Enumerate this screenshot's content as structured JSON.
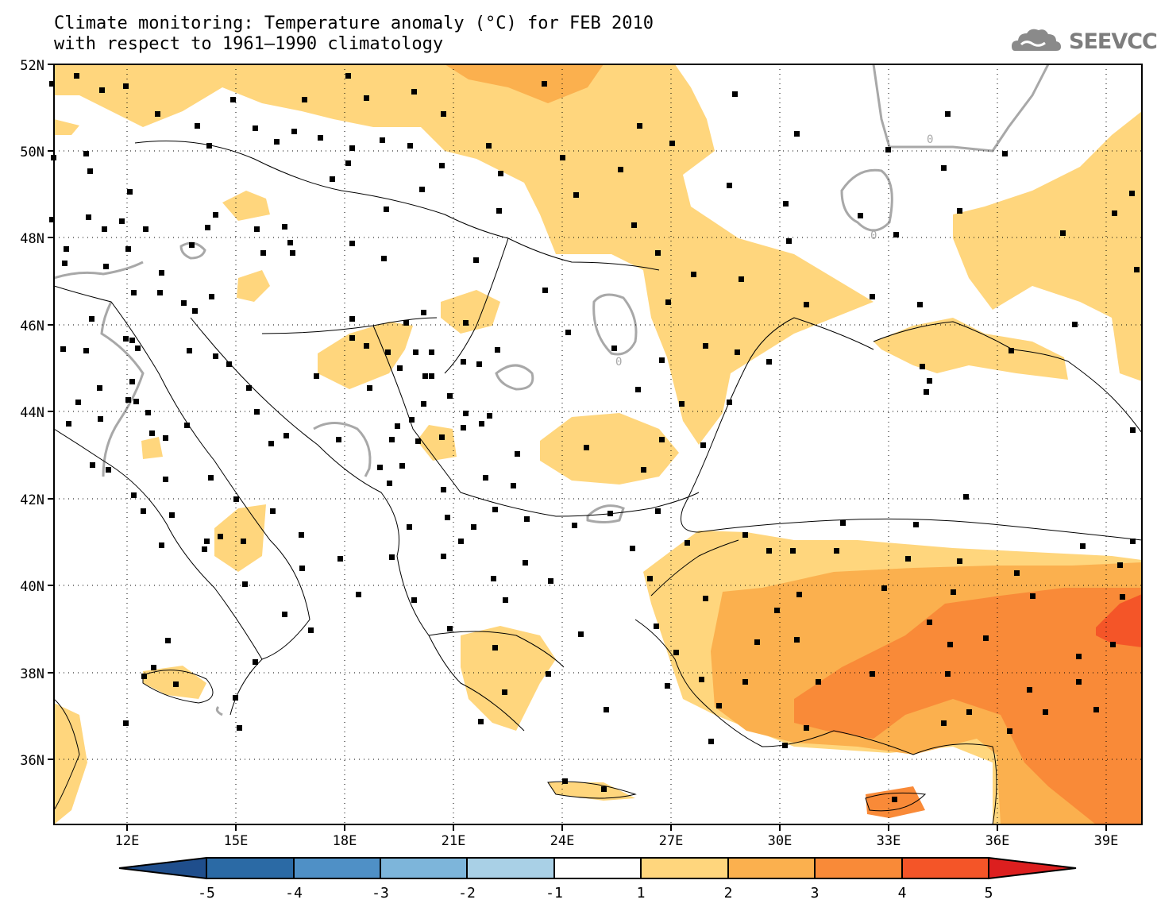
{
  "header": {
    "title_line1": "Climate monitoring: Temperature anomaly (°C) for FEB 2010",
    "title_line2": "with respect to 1961–1990 climatology",
    "logo_text": "SEEVCCC"
  },
  "map": {
    "lat_labels": [
      "52N",
      "50N",
      "48N",
      "46N",
      "44N",
      "42N",
      "40N",
      "38N",
      "36N"
    ],
    "lon_labels": [
      "12E",
      "15E",
      "18E",
      "21E",
      "24E",
      "27E",
      "30E",
      "33E",
      "36E",
      "39E"
    ],
    "contour_label": "0"
  },
  "colorbar": {
    "tick_labels": [
      "-5",
      "-4",
      "-3",
      "-2",
      "-1",
      "1",
      "2",
      "3",
      "4",
      "5"
    ],
    "colors": [
      "#1f4e8c",
      "#2b6aa5",
      "#4f90c6",
      "#7db5da",
      "#a9d0e6",
      "#ffffff",
      "#ffd67d",
      "#fbb04e",
      "#f98a38",
      "#f45528",
      "#dc1f1f"
    ]
  },
  "chart_data": {
    "type": "heatmap",
    "title": "Climate monitoring: Temperature anomaly (°C) for FEB 2010",
    "subtitle": "with respect to 1961–1990 climatology",
    "xlim": [
      10,
      40
    ],
    "ylim": [
      34.5,
      52
    ],
    "contour_levels": [
      -5,
      -4,
      -3,
      -2,
      -1,
      1,
      2,
      3,
      4,
      5
    ],
    "regions": [
      {
        "name": "",
        "min": 1,
        "max": 2
      },
      {
        "name": "",
        "min": 2,
        "max": 3
      },
      {
        "name": "",
        "min": 3,
        "max": 4
      },
      {
        "name": "",
        "min": 4,
        "max": 5
      }
    ]
  }
}
